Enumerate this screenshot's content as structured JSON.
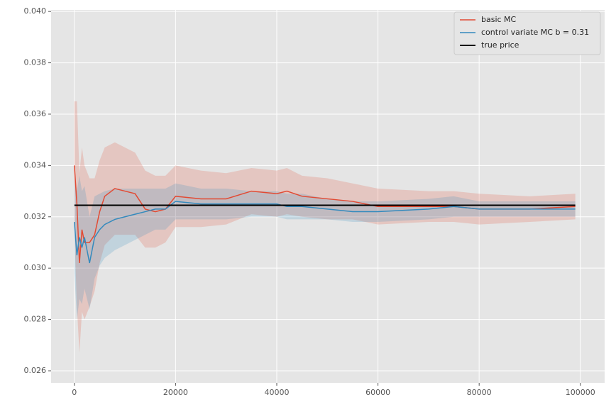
{
  "chart_data": {
    "type": "line",
    "x": [
      0,
      500,
      1000,
      1500,
      2000,
      3000,
      4000,
      5000,
      6000,
      8000,
      10000,
      12000,
      14000,
      16000,
      18000,
      20000,
      25000,
      30000,
      35000,
      40000,
      42000,
      45000,
      50000,
      55000,
      60000,
      70000,
      75000,
      80000,
      90000,
      99000
    ],
    "series": [
      {
        "name": "basic MC",
        "color": "#e24a33",
        "values": [
          0.034,
          0.0325,
          0.0302,
          0.0315,
          0.031,
          0.031,
          0.0313,
          0.0322,
          0.0328,
          0.0331,
          0.033,
          0.0329,
          0.0323,
          0.0322,
          0.0323,
          0.0328,
          0.0327,
          0.0327,
          0.033,
          0.0329,
          0.033,
          0.0328,
          0.0327,
          0.0326,
          0.0324,
          0.0324,
          0.0324,
          0.0323,
          0.0323,
          0.0324
        ],
        "upper": [
          0.0365,
          0.0365,
          0.0337,
          0.0347,
          0.034,
          0.0335,
          0.0335,
          0.0342,
          0.0347,
          0.0349,
          0.0347,
          0.0345,
          0.0338,
          0.0336,
          0.0336,
          0.034,
          0.0338,
          0.0337,
          0.0339,
          0.0338,
          0.0339,
          0.0336,
          0.0335,
          0.0333,
          0.0331,
          0.033,
          0.033,
          0.0329,
          0.0328,
          0.0329
        ],
        "lower": [
          0.0315,
          0.0285,
          0.0267,
          0.0283,
          0.028,
          0.0285,
          0.0291,
          0.0302,
          0.0309,
          0.0313,
          0.0313,
          0.0313,
          0.0308,
          0.0308,
          0.031,
          0.0316,
          0.0316,
          0.0317,
          0.0321,
          0.032,
          0.0321,
          0.032,
          0.0319,
          0.0319,
          0.0317,
          0.0318,
          0.0318,
          0.0317,
          0.0318,
          0.0319
        ]
      },
      {
        "name": "control variate MC b = 0.31",
        "color": "#348abd",
        "values": [
          0.0318,
          0.0305,
          0.0312,
          0.0308,
          0.0312,
          0.0302,
          0.0312,
          0.0315,
          0.0317,
          0.0319,
          0.032,
          0.0321,
          0.0322,
          0.0323,
          0.0323,
          0.0326,
          0.0325,
          0.0325,
          0.0325,
          0.0325,
          0.0324,
          0.0324,
          0.0323,
          0.0322,
          0.0322,
          0.0323,
          0.0324,
          0.0323,
          0.0323,
          0.0323
        ],
        "upper": [
          0.0338,
          0.033,
          0.0336,
          0.033,
          0.0332,
          0.032,
          0.0328,
          0.0329,
          0.033,
          0.0331,
          0.0331,
          0.0331,
          0.0331,
          0.0331,
          0.0331,
          0.0333,
          0.0331,
          0.0331,
          0.033,
          0.033,
          0.0329,
          0.0329,
          0.0327,
          0.0326,
          0.0326,
          0.0327,
          0.0328,
          0.0326,
          0.0326,
          0.0326
        ],
        "lower": [
          0.0298,
          0.028,
          0.0288,
          0.0286,
          0.0292,
          0.0284,
          0.0296,
          0.0301,
          0.0304,
          0.0307,
          0.0309,
          0.0311,
          0.0313,
          0.0315,
          0.0315,
          0.0319,
          0.0319,
          0.0319,
          0.032,
          0.032,
          0.0319,
          0.0319,
          0.0319,
          0.0318,
          0.0318,
          0.0319,
          0.032,
          0.032,
          0.032,
          0.032
        ]
      },
      {
        "name": "true price",
        "color": "#000000",
        "x": [
          0,
          99000
        ],
        "values": [
          0.03245,
          0.03245
        ]
      }
    ],
    "xlim": [
      -4600,
      104800
    ],
    "ylim": [
      0.02553,
      0.04006
    ],
    "xticks": [
      0,
      20000,
      40000,
      60000,
      80000,
      100000
    ],
    "yticks": [
      0.026,
      0.028,
      {
        "value": 0.03,
        "label": "0.030"
      },
      0.032,
      0.034,
      0.036,
      0.038,
      {
        "value": 0.04,
        "label": "0.040"
      }
    ],
    "grid": true,
    "legend": "upper right"
  }
}
